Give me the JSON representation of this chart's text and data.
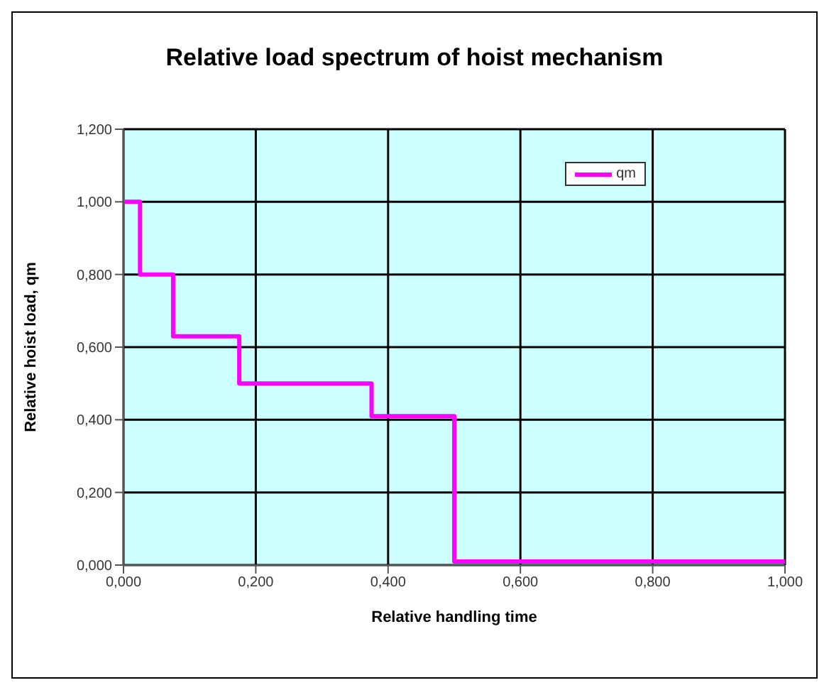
{
  "chart_data": {
    "type": "step",
    "title": "Relative load spectrum of hoist mechanism",
    "xlabel": "Relative handling time",
    "ylabel": "Relative hoist load, qm",
    "x": [
      0,
      0.025,
      0.075,
      0.175,
      0.375,
      0.5,
      1
    ],
    "series": [
      {
        "name": "qm",
        "color": "#ff00ff",
        "values": [
          1,
          0.8,
          0.63,
          0.5,
          0.41,
          0.01,
          0.01
        ]
      }
    ],
    "xlim": [
      0,
      1
    ],
    "xticks": [
      {
        "value": 0,
        "label": "0,000"
      },
      {
        "value": 0.2,
        "label": "0,200"
      },
      {
        "value": 0.4,
        "label": "0,400"
      },
      {
        "value": 0.6,
        "label": "0,600"
      },
      {
        "value": 0.8,
        "label": "0,800"
      },
      {
        "value": 1,
        "label": "1,000"
      }
    ],
    "ylim": [
      0,
      1.2
    ],
    "yticks": [
      {
        "value": 0,
        "label": "0,000"
      },
      {
        "value": 0.2,
        "label": "0,200"
      },
      {
        "value": 0.4,
        "label": "0,400"
      },
      {
        "value": 0.6,
        "label": "0,600"
      },
      {
        "value": 0.8,
        "label": "0,800"
      },
      {
        "value": 1,
        "label": "1,000"
      },
      {
        "value": 1.2,
        "label": "1,200"
      }
    ],
    "grid": true,
    "legend": "top right",
    "marker": "none",
    "line_style": "solid"
  }
}
